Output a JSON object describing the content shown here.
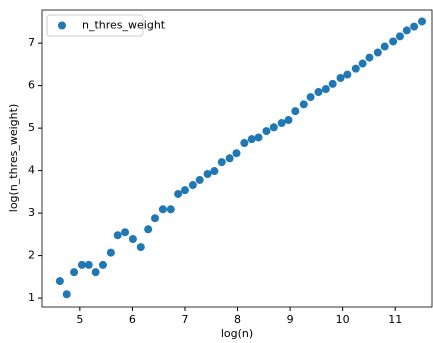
{
  "chart_data": {
    "type": "scatter",
    "x_label": "log(n)",
    "y_label": "log(n_thres_weight)",
    "legend": "upper left",
    "series": [
      {
        "name": "n_thres_weight",
        "color": "#1f77b4",
        "x": [
          4.62,
          4.75,
          4.89,
          5.04,
          5.17,
          5.3,
          5.44,
          5.59,
          5.72,
          5.86,
          6.01,
          6.16,
          6.3,
          6.43,
          6.58,
          6.73,
          6.87,
          7.0,
          7.15,
          7.28,
          7.43,
          7.56,
          7.7,
          7.85,
          7.98,
          8.13,
          8.27,
          8.4,
          8.55,
          8.69,
          8.84,
          8.97,
          9.1,
          9.26,
          9.39,
          9.54,
          9.68,
          9.81,
          9.96,
          10.09,
          10.25,
          10.38,
          10.51,
          10.67,
          10.8,
          10.96,
          11.09,
          11.22,
          11.36,
          11.51
        ],
        "values": [
          1.4,
          1.09,
          1.61,
          1.78,
          1.78,
          1.61,
          1.78,
          2.07,
          2.48,
          2.55,
          2.39,
          2.2,
          2.62,
          2.88,
          3.09,
          3.09,
          3.45,
          3.54,
          3.66,
          3.78,
          3.92,
          3.99,
          4.2,
          4.29,
          4.41,
          4.65,
          4.74,
          4.78,
          4.93,
          5.02,
          5.12,
          5.19,
          5.4,
          5.56,
          5.73,
          5.85,
          5.92,
          6.04,
          6.18,
          6.26,
          6.4,
          6.52,
          6.66,
          6.78,
          6.92,
          7.04,
          7.16,
          7.3,
          7.39,
          7.51
        ]
      }
    ],
    "xlim": [
      4.28,
      11.7
    ],
    "xticks": [
      5,
      6,
      7,
      8,
      9,
      10,
      11
    ],
    "ylim": [
      0.79,
      7.78
    ],
    "yticks": [
      1,
      2,
      3,
      4,
      5,
      6,
      7
    ]
  }
}
